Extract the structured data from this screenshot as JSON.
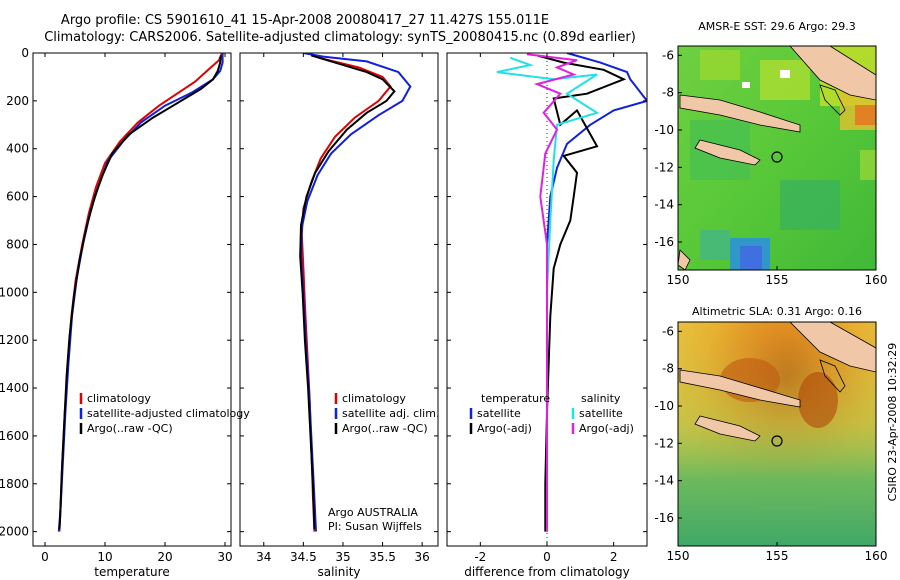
{
  "header": {
    "line1": "Argo profile: CS 5901610_41 15-Apr-2008 20080417_27 11.427S 155.011E",
    "line2": "Climatology: CARS2006. Satellite-adjusted climatology: synTS_20080415.nc (0.89d earlier)"
  },
  "colors": {
    "climatology": "#e00000",
    "satellite": "#1020e0",
    "argo": "#000000",
    "sat_diff": "#20e0e8",
    "argo_diff": "#e020e0"
  },
  "chart_data": [
    {
      "type": "line",
      "xlabel": "temperature",
      "xlim": [
        -2,
        31
      ],
      "ylim": [
        0,
        2060
      ],
      "y_reversed": true,
      "xticks": [
        0,
        10,
        20,
        30
      ],
      "yticks": [
        0,
        200,
        400,
        600,
        800,
        1000,
        1200,
        1400,
        1600,
        1800,
        2000
      ],
      "legend": [
        "climatology",
        "satellite-adjusted climatology",
        "Argo(..raw -QC)"
      ],
      "series": [
        {
          "name": "climatology",
          "color": "climatology",
          "points": [
            [
              29.5,
              0
            ],
            [
              29,
              30
            ],
            [
              27,
              75
            ],
            [
              25,
              120
            ],
            [
              22,
              170
            ],
            [
              19,
              220
            ],
            [
              15.5,
              290
            ],
            [
              12.5,
              370
            ],
            [
              10,
              460
            ],
            [
              8.5,
              560
            ],
            [
              7.3,
              670
            ],
            [
              6.2,
              800
            ],
            [
              5.1,
              950
            ],
            [
              4.4,
              1100
            ],
            [
              3.8,
              1300
            ],
            [
              3.3,
              1500
            ],
            [
              2.9,
              1700
            ],
            [
              2.6,
              1900
            ],
            [
              2.4,
              2000
            ]
          ]
        },
        {
          "name": "satellite-adjusted climatology",
          "color": "satellite",
          "points": [
            [
              29.6,
              0
            ],
            [
              29.6,
              40
            ],
            [
              29.2,
              75
            ],
            [
              28,
              110
            ],
            [
              24.5,
              165
            ],
            [
              20,
              220
            ],
            [
              16,
              290
            ],
            [
              13,
              370
            ],
            [
              10.5,
              450
            ],
            [
              9,
              550
            ],
            [
              7.6,
              660
            ],
            [
              6.4,
              790
            ],
            [
              5.3,
              940
            ],
            [
              4.5,
              1100
            ],
            [
              3.9,
              1300
            ],
            [
              3.4,
              1500
            ],
            [
              3,
              1700
            ],
            [
              2.6,
              1900
            ],
            [
              2.3,
              2000
            ]
          ]
        },
        {
          "name": "Argo(..raw -QC)",
          "color": "argo",
          "points": [
            [
              29.3,
              10
            ],
            [
              29.2,
              40
            ],
            [
              28.8,
              75
            ],
            [
              28,
              110
            ],
            [
              26,
              150
            ],
            [
              22,
              210
            ],
            [
              18,
              270
            ],
            [
              14,
              340
            ],
            [
              11.2,
              420
            ],
            [
              9.6,
              510
            ],
            [
              8.3,
              600
            ],
            [
              7,
              720
            ],
            [
              5.8,
              860
            ],
            [
              4.8,
              1020
            ],
            [
              4.1,
              1180
            ],
            [
              3.6,
              1350
            ],
            [
              3.2,
              1550
            ],
            [
              2.8,
              1750
            ],
            [
              2.5,
              1950
            ],
            [
              2.4,
              1990
            ]
          ]
        }
      ]
    },
    {
      "type": "line",
      "xlabel": "salinity",
      "xlim": [
        33.7,
        36.2
      ],
      "ylim": [
        0,
        2060
      ],
      "y_reversed": true,
      "xticks": [
        34,
        34.5,
        35,
        35.5,
        36
      ],
      "legend": [
        "climatology",
        "satellite adj. clim.",
        "Argo(..raw -QC)"
      ],
      "annotation": [
        "Argo AUSTRALIA",
        "PI: Susan Wijffels"
      ],
      "series": [
        {
          "name": "climatology",
          "color": "climatology",
          "points": [
            [
              34.55,
              0
            ],
            [
              34.7,
              20
            ],
            [
              35.2,
              60
            ],
            [
              35.5,
              100
            ],
            [
              35.6,
              140
            ],
            [
              35.45,
              200
            ],
            [
              35.15,
              270
            ],
            [
              34.9,
              350
            ],
            [
              34.72,
              440
            ],
            [
              34.6,
              540
            ],
            [
              34.5,
              650
            ],
            [
              34.48,
              760
            ],
            [
              34.5,
              900
            ],
            [
              34.52,
              1050
            ],
            [
              34.55,
              1250
            ],
            [
              34.58,
              1450
            ],
            [
              34.6,
              1650
            ],
            [
              34.62,
              1850
            ],
            [
              34.64,
              2000
            ]
          ]
        },
        {
          "name": "satellite adj. clim.",
          "color": "satellite",
          "points": [
            [
              34.5,
              0
            ],
            [
              34.75,
              15
            ],
            [
              35.3,
              35
            ],
            [
              35.7,
              80
            ],
            [
              35.85,
              140
            ],
            [
              35.75,
              200
            ],
            [
              35.45,
              260
            ],
            [
              35.1,
              340
            ],
            [
              34.85,
              420
            ],
            [
              34.68,
              510
            ],
            [
              34.55,
              620
            ],
            [
              34.48,
              730
            ],
            [
              34.47,
              850
            ],
            [
              34.5,
              1000
            ],
            [
              34.53,
              1200
            ],
            [
              34.57,
              1400
            ],
            [
              34.6,
              1600
            ],
            [
              34.63,
              1800
            ],
            [
              34.66,
              2000
            ]
          ]
        },
        {
          "name": "Argo(..raw -QC)",
          "color": "argo",
          "points": [
            [
              34.6,
              10
            ],
            [
              34.9,
              40
            ],
            [
              35.3,
              80
            ],
            [
              35.5,
              110
            ],
            [
              35.65,
              160
            ],
            [
              35.55,
              200
            ],
            [
              35.3,
              250
            ],
            [
              35.05,
              320
            ],
            [
              34.82,
              410
            ],
            [
              34.65,
              500
            ],
            [
              34.54,
              600
            ],
            [
              34.47,
              720
            ],
            [
              34.46,
              850
            ],
            [
              34.49,
              1000
            ],
            [
              34.52,
              1200
            ],
            [
              34.56,
              1400
            ],
            [
              34.59,
              1600
            ],
            [
              34.62,
              1800
            ],
            [
              34.64,
              1990
            ]
          ]
        }
      ]
    },
    {
      "type": "line",
      "xlabel": "difference from climatology",
      "xlim": [
        -3,
        3
      ],
      "ylim": [
        0,
        2060
      ],
      "y_reversed": true,
      "xticks": [
        -2,
        0,
        2
      ],
      "legend_headers": [
        "temperature",
        "salinity"
      ],
      "legend": [
        "satellite",
        "Argo(-adj)",
        "satellite",
        "Argo(-adj)"
      ],
      "series": [
        {
          "name": "satellite",
          "group": "temperature",
          "color": "satellite",
          "points": [
            [
              0.6,
              0
            ],
            [
              1.6,
              40
            ],
            [
              2.4,
              80
            ],
            [
              2.5,
              110
            ],
            [
              3,
              200
            ],
            [
              2,
              240
            ],
            [
              1.3,
              300
            ],
            [
              0.6,
              380
            ],
            [
              0.3,
              480
            ],
            [
              0.1,
              600
            ],
            [
              0,
              800
            ],
            [
              0,
              1100
            ],
            [
              0,
              1500
            ],
            [
              0,
              2000
            ]
          ]
        },
        {
          "name": "Argo(-adj)",
          "group": "temperature",
          "color": "argo",
          "points": [
            [
              -0.3,
              10
            ],
            [
              0.5,
              40
            ],
            [
              1.7,
              70
            ],
            [
              2.3,
              110
            ],
            [
              1.2,
              170
            ],
            [
              0.2,
              190
            ],
            [
              0.4,
              300
            ],
            [
              0.9,
              240
            ],
            [
              1.5,
              390
            ],
            [
              0.5,
              430
            ],
            [
              0.9,
              500
            ],
            [
              0.8,
              600
            ],
            [
              0.7,
              700
            ],
            [
              0.4,
              800
            ],
            [
              0.2,
              900
            ],
            [
              0.1,
              1100
            ],
            [
              0,
              1500
            ],
            [
              -0.05,
              1800
            ],
            [
              -0.05,
              2000
            ]
          ]
        },
        {
          "name": "satellite",
          "group": "salinity",
          "color": "sat_diff",
          "points": [
            [
              -1.1,
              20
            ],
            [
              -0.5,
              50
            ],
            [
              -1.5,
              80
            ],
            [
              0.2,
              110
            ],
            [
              1.5,
              90
            ],
            [
              0.6,
              170
            ],
            [
              1.5,
              250
            ],
            [
              0.3,
              300
            ],
            [
              0.2,
              450
            ],
            [
              0.1,
              700
            ],
            [
              0,
              1000
            ],
            [
              0,
              1400
            ],
            [
              0,
              2000
            ]
          ]
        },
        {
          "name": "Argo(-adj)",
          "group": "salinity",
          "color": "argo_diff",
          "points": [
            [
              -0.6,
              5
            ],
            [
              0.9,
              30
            ],
            [
              0.3,
              60
            ],
            [
              0.8,
              90
            ],
            [
              -0.3,
              130
            ],
            [
              0.4,
              170
            ],
            [
              -0.1,
              250
            ],
            [
              0.3,
              320
            ],
            [
              -0.05,
              420
            ],
            [
              -0.2,
              600
            ],
            [
              0,
              800
            ],
            [
              0,
              1100
            ],
            [
              0,
              1500
            ],
            [
              0,
              2000
            ]
          ]
        }
      ]
    }
  ],
  "maps": [
    {
      "title": "AMSR-E SST: 29.6 Argo: 29.3",
      "xticks": [
        "150",
        "155",
        "160"
      ],
      "yticks": [
        "-6",
        "-8",
        "-10",
        "-12",
        "-14",
        "-16"
      ],
      "lon_range": [
        150,
        160
      ],
      "lat_range": [
        -5.5,
        -17.5
      ],
      "marker": [
        155,
        -11.4
      ]
    },
    {
      "title": "Altimetric SLA: 0.31 Argo: 0.16",
      "xticks": [
        "150",
        "155",
        "160"
      ],
      "yticks": [
        "-6",
        "-8",
        "-10",
        "-12",
        "-14",
        "-16"
      ],
      "lon_range": [
        150,
        160
      ],
      "lat_range": [
        -5.5,
        -17.5
      ],
      "marker": [
        155,
        -11.4
      ]
    }
  ],
  "sidebar_text": "CSIRO 23-Apr-2008 10:32:29"
}
